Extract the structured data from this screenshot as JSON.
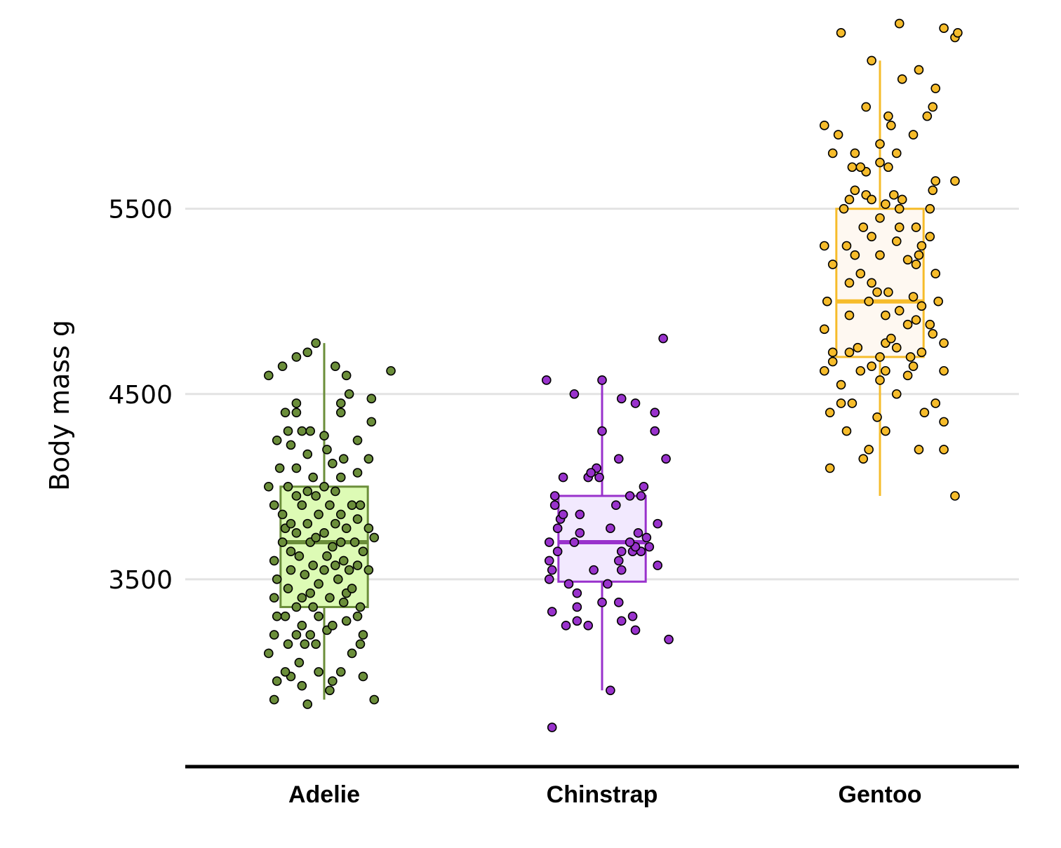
{
  "chart_data": {
    "type": "boxplot",
    "title": "",
    "xlabel": "",
    "ylabel": "Body mass g",
    "yticks": [
      3500,
      4500,
      5500
    ],
    "ylim": [
      2530,
      6400
    ],
    "grid": "horizontal",
    "legend": "none",
    "categories": [
      "Adelie",
      "Chinstrap",
      "Gentoo"
    ],
    "series": [
      {
        "name": "Adelie",
        "color": "#6B8E3A",
        "fill": "#DDFBB5",
        "box": {
          "min": 2850,
          "q1": 3350,
          "median": 3700,
          "q3": 4000,
          "max": 4775
        },
        "points": [
          [
            -0.18,
            2850
          ],
          [
            -0.06,
            2825
          ],
          [
            0.02,
            2900
          ],
          [
            0.18,
            2850
          ],
          [
            -0.08,
            2925
          ],
          [
            0.03,
            2950
          ],
          [
            0.14,
            2975
          ],
          [
            -0.17,
            2950
          ],
          [
            -0.12,
            2975
          ],
          [
            -0.14,
            3000
          ],
          [
            -0.02,
            3000
          ],
          [
            0.06,
            3000
          ],
          [
            -0.09,
            3050
          ],
          [
            0.1,
            3100
          ],
          [
            -0.2,
            3100
          ],
          [
            -0.13,
            3150
          ],
          [
            -0.07,
            3150
          ],
          [
            -0.03,
            3150
          ],
          [
            0.13,
            3150
          ],
          [
            0.14,
            3200
          ],
          [
            -0.18,
            3200
          ],
          [
            -0.1,
            3200
          ],
          [
            -0.05,
            3200
          ],
          [
            0.01,
            3225
          ],
          [
            -0.08,
            3250
          ],
          [
            0.03,
            3250
          ],
          [
            0.08,
            3275
          ],
          [
            -0.14,
            3300
          ],
          [
            -0.02,
            3300
          ],
          [
            0.12,
            3300
          ],
          [
            -0.17,
            3300
          ],
          [
            0.13,
            3350
          ],
          [
            -0.1,
            3350
          ],
          [
            -0.04,
            3350
          ],
          [
            0.07,
            3375
          ],
          [
            -0.18,
            3400
          ],
          [
            -0.08,
            3400
          ],
          [
            0.02,
            3400
          ],
          [
            -0.05,
            3425
          ],
          [
            0.08,
            3425
          ],
          [
            -0.13,
            3450
          ],
          [
            0.1,
            3450
          ],
          [
            -0.02,
            3475
          ],
          [
            0.05,
            3500
          ],
          [
            -0.17,
            3500
          ],
          [
            -0.07,
            3525
          ],
          [
            0.0,
            3550
          ],
          [
            0.09,
            3550
          ],
          [
            0.16,
            3550
          ],
          [
            -0.12,
            3550
          ],
          [
            -0.04,
            3575
          ],
          [
            0.04,
            3575
          ],
          [
            0.12,
            3575
          ],
          [
            -0.18,
            3600
          ],
          [
            0.07,
            3600
          ],
          [
            -0.09,
            3625
          ],
          [
            0.01,
            3625
          ],
          [
            -0.12,
            3650
          ],
          [
            0.14,
            3650
          ],
          [
            0.03,
            3675
          ],
          [
            -0.05,
            3700
          ],
          [
            0.06,
            3700
          ],
          [
            -0.15,
            3700
          ],
          [
            0.11,
            3700
          ],
          [
            -0.03,
            3725
          ],
          [
            0.18,
            3725
          ],
          [
            -0.1,
            3750
          ],
          [
            0.0,
            3750
          ],
          [
            -0.14,
            3775
          ],
          [
            0.08,
            3775
          ],
          [
            0.16,
            3775
          ],
          [
            -0.06,
            3800
          ],
          [
            0.04,
            3800
          ],
          [
            -0.12,
            3800
          ],
          [
            0.12,
            3825
          ],
          [
            -0.02,
            3850
          ],
          [
            -0.15,
            3850
          ],
          [
            0.06,
            3850
          ],
          [
            0.1,
            3900
          ],
          [
            -0.08,
            3900
          ],
          [
            0.02,
            3900
          ],
          [
            -0.18,
            3900
          ],
          [
            0.13,
            3900
          ],
          [
            -0.03,
            3950
          ],
          [
            -0.1,
            3950
          ],
          [
            0.04,
            3975
          ],
          [
            -0.06,
            3975
          ],
          [
            -0.13,
            4000
          ],
          [
            0.0,
            4000
          ],
          [
            -0.2,
            4000
          ],
          [
            0.06,
            4050
          ],
          [
            -0.04,
            4050
          ],
          [
            0.12,
            4075
          ],
          [
            -0.1,
            4100
          ],
          [
            0.03,
            4125
          ],
          [
            -0.16,
            4100
          ],
          [
            0.07,
            4150
          ],
          [
            0.16,
            4150
          ],
          [
            -0.06,
            4175
          ],
          [
            0.01,
            4200
          ],
          [
            -0.12,
            4225
          ],
          [
            -0.17,
            4250
          ],
          [
            0.12,
            4250
          ],
          [
            0.0,
            4275
          ],
          [
            -0.08,
            4300
          ],
          [
            -0.05,
            4300
          ],
          [
            -0.13,
            4300
          ],
          [
            0.06,
            4400
          ],
          [
            -0.14,
            4400
          ],
          [
            -0.1,
            4450
          ],
          [
            0.06,
            4450
          ],
          [
            0.17,
            4350
          ],
          [
            0.09,
            4500
          ],
          [
            -0.1,
            4400
          ],
          [
            0.17,
            4475
          ],
          [
            0.08,
            4600
          ],
          [
            0.24,
            4625
          ],
          [
            -0.15,
            4650
          ],
          [
            -0.1,
            4700
          ],
          [
            0.04,
            4650
          ],
          [
            -0.06,
            4725
          ],
          [
            -0.03,
            4775
          ],
          [
            -0.2,
            4600
          ]
        ]
      },
      {
        "name": "Chinstrap",
        "color": "#9932CC",
        "fill": "#F2E9FE",
        "box": {
          "min": 2900,
          "q1": 3487,
          "median": 3700,
          "q3": 3950,
          "max": 4550
        },
        "points": [
          [
            -0.18,
            2700
          ],
          [
            0.03,
            2900
          ],
          [
            -0.13,
            3250
          ],
          [
            -0.05,
            3250
          ],
          [
            0.12,
            3225
          ],
          [
            0.11,
            3300
          ],
          [
            -0.09,
            3275
          ],
          [
            0.24,
            3175
          ],
          [
            -0.18,
            3325
          ],
          [
            0.07,
            3275
          ],
          [
            0.0,
            3375
          ],
          [
            -0.09,
            3350
          ],
          [
            0.06,
            3375
          ],
          [
            -0.09,
            3425
          ],
          [
            -0.12,
            3475
          ],
          [
            -0.19,
            3500
          ],
          [
            0.02,
            3475
          ],
          [
            -0.18,
            3550
          ],
          [
            0.07,
            3550
          ],
          [
            -0.03,
            3550
          ],
          [
            -0.19,
            3600
          ],
          [
            0.06,
            3600
          ],
          [
            0.2,
            3575
          ],
          [
            0.11,
            3650
          ],
          [
            -0.16,
            3650
          ],
          [
            0.07,
            3650
          ],
          [
            0.14,
            3650
          ],
          [
            0.12,
            3675
          ],
          [
            -0.19,
            3700
          ],
          [
            -0.1,
            3700
          ],
          [
            0.1,
            3700
          ],
          [
            0.17,
            3675
          ],
          [
            0.16,
            3725
          ],
          [
            -0.08,
            3750
          ],
          [
            0.13,
            3750
          ],
          [
            0.03,
            3775
          ],
          [
            -0.16,
            3775
          ],
          [
            0.2,
            3800
          ],
          [
            -0.15,
            3825
          ],
          [
            -0.14,
            3850
          ],
          [
            -0.08,
            3850
          ],
          [
            0.05,
            3900
          ],
          [
            -0.17,
            3900
          ],
          [
            0.14,
            3950
          ],
          [
            -0.17,
            3950
          ],
          [
            0.1,
            3950
          ],
          [
            0.15,
            4000
          ],
          [
            -0.05,
            4050
          ],
          [
            -0.02,
            4100
          ],
          [
            -0.01,
            4050
          ],
          [
            -0.04,
            4075
          ],
          [
            -0.14,
            4050
          ],
          [
            0.06,
            4150
          ],
          [
            0.23,
            4150
          ],
          [
            0.19,
            4300
          ],
          [
            0.0,
            4300
          ],
          [
            0.19,
            4400
          ],
          [
            -0.1,
            4500
          ],
          [
            0.12,
            4450
          ],
          [
            0.07,
            4475
          ],
          [
            0.0,
            4575
          ],
          [
            -0.2,
            4575
          ],
          [
            0.22,
            4800
          ]
        ]
      },
      {
        "name": "Gentoo",
        "color": "#F6BC2B",
        "fill": "#FEF8F1",
        "box": {
          "min": 3950,
          "q1": 4700,
          "median": 5000,
          "q3": 5500,
          "max": 6300
        },
        "points": [
          [
            0.27,
            3950
          ],
          [
            -0.18,
            4100
          ],
          [
            -0.06,
            4150
          ],
          [
            0.14,
            4200
          ],
          [
            -0.04,
            4200
          ],
          [
            0.23,
            4200
          ],
          [
            -0.12,
            4300
          ],
          [
            0.02,
            4300
          ],
          [
            0.23,
            4350
          ],
          [
            -0.01,
            4375
          ],
          [
            0.16,
            4400
          ],
          [
            -0.18,
            4400
          ],
          [
            -0.14,
            4450
          ],
          [
            0.2,
            4450
          ],
          [
            -0.1,
            4450
          ],
          [
            0.06,
            4500
          ],
          [
            -0.14,
            4550
          ],
          [
            0.0,
            4575
          ],
          [
            0.23,
            4625
          ],
          [
            0.1,
            4600
          ],
          [
            -0.2,
            4625
          ],
          [
            -0.07,
            4625
          ],
          [
            0.02,
            4625
          ],
          [
            -0.03,
            4650
          ],
          [
            0.12,
            4650
          ],
          [
            -0.17,
            4675
          ],
          [
            0.0,
            4700
          ],
          [
            0.11,
            4700
          ],
          [
            0.15,
            4725
          ],
          [
            -0.11,
            4725
          ],
          [
            0.06,
            4750
          ],
          [
            -0.17,
            4725
          ],
          [
            0.23,
            4775
          ],
          [
            -0.08,
            4750
          ],
          [
            0.02,
            4775
          ],
          [
            0.04,
            4800
          ],
          [
            0.19,
            4825
          ],
          [
            -0.2,
            4850
          ],
          [
            0.1,
            4875
          ],
          [
            0.18,
            4875
          ],
          [
            0.13,
            4900
          ],
          [
            -0.11,
            4925
          ],
          [
            0.02,
            4925
          ],
          [
            0.07,
            4950
          ],
          [
            0.15,
            4975
          ],
          [
            -0.19,
            5000
          ],
          [
            0.21,
            5000
          ],
          [
            -0.04,
            5000
          ],
          [
            0.12,
            5025
          ],
          [
            0.03,
            5050
          ],
          [
            -0.01,
            5050
          ],
          [
            -0.11,
            5100
          ],
          [
            -0.03,
            5100
          ],
          [
            0.2,
            5150
          ],
          [
            -0.07,
            5150
          ],
          [
            -0.17,
            5200
          ],
          [
            0.13,
            5200
          ],
          [
            0.1,
            5225
          ],
          [
            -0.09,
            5250
          ],
          [
            0.0,
            5250
          ],
          [
            0.14,
            5250
          ],
          [
            -0.12,
            5300
          ],
          [
            0.15,
            5300
          ],
          [
            0.06,
            5325
          ],
          [
            -0.2,
            5300
          ],
          [
            -0.03,
            5350
          ],
          [
            0.18,
            5350
          ],
          [
            0.07,
            5400
          ],
          [
            -0.06,
            5400
          ],
          [
            0.13,
            5400
          ],
          [
            0.0,
            5450
          ],
          [
            0.07,
            5500
          ],
          [
            0.18,
            5500
          ],
          [
            0.02,
            5525
          ],
          [
            -0.11,
            5550
          ],
          [
            -0.05,
            5575
          ],
          [
            -0.03,
            5550
          ],
          [
            0.08,
            5550
          ],
          [
            -0.09,
            5600
          ],
          [
            0.19,
            5600
          ],
          [
            0.05,
            5575
          ],
          [
            -0.13,
            5500
          ],
          [
            0.2,
            5650
          ],
          [
            -0.05,
            5700
          ],
          [
            -0.1,
            5725
          ],
          [
            -0.07,
            5725
          ],
          [
            0.03,
            5725
          ],
          [
            0.0,
            5750
          ],
          [
            0.27,
            5650
          ],
          [
            -0.17,
            5800
          ],
          [
            0.06,
            5800
          ],
          [
            -0.09,
            5800
          ],
          [
            0.0,
            5850
          ],
          [
            0.12,
            5900
          ],
          [
            -0.15,
            5900
          ],
          [
            0.04,
            5950
          ],
          [
            0.03,
            6000
          ],
          [
            0.17,
            6000
          ],
          [
            -0.2,
            5950
          ],
          [
            0.19,
            6050
          ],
          [
            -0.05,
            6050
          ],
          [
            0.2,
            6150
          ],
          [
            0.08,
            6200
          ],
          [
            0.14,
            6250
          ],
          [
            -0.03,
            6300
          ],
          [
            -0.14,
            6450
          ],
          [
            0.27,
            6425
          ],
          [
            0.23,
            6475
          ],
          [
            0.28,
            6450
          ],
          [
            0.07,
            6500
          ]
        ]
      }
    ]
  }
}
